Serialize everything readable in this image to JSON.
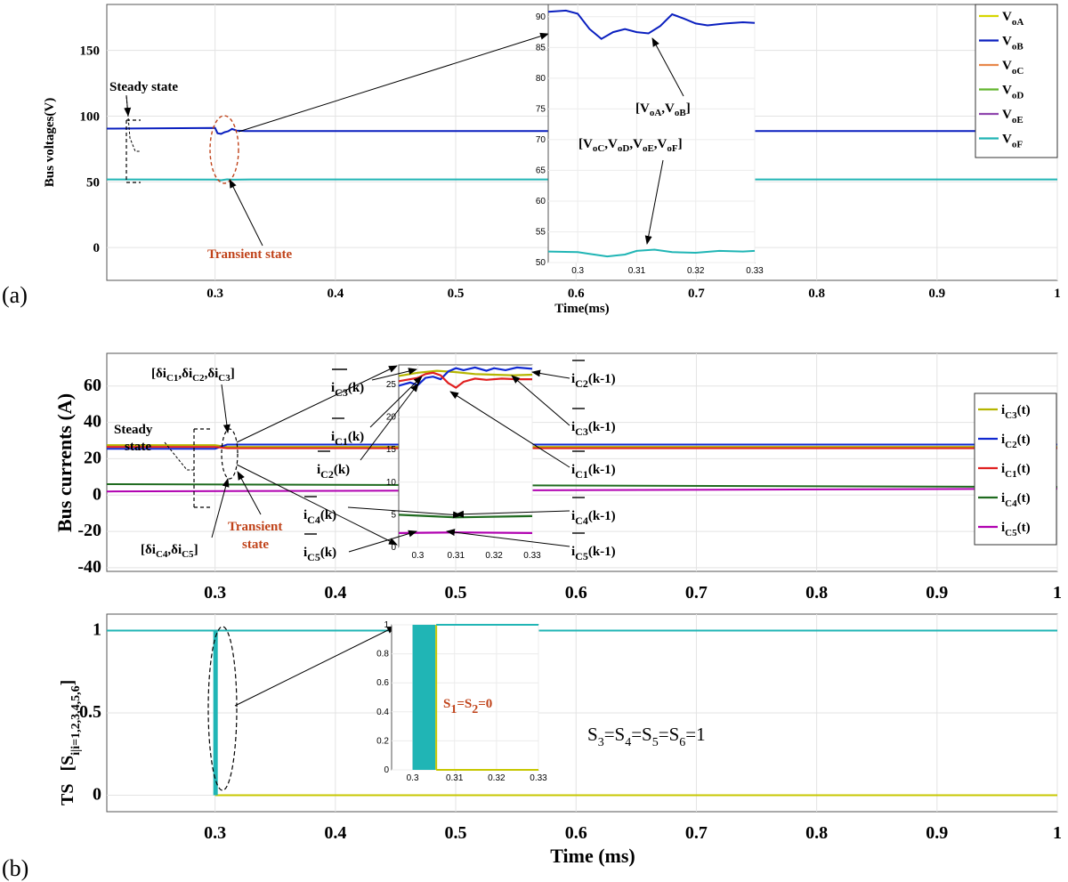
{
  "panel_labels": {
    "a": "(a)",
    "b": "(b)"
  },
  "colors": {
    "voA": "#d6d600",
    "voB": "#0a1fbf",
    "voC": "#e8874a",
    "voD": "#62b52c",
    "voE": "#8e44ad",
    "voF": "#20b5b5",
    "ic3": "#b5b500",
    "ic2": "#1028d0",
    "ic1": "#e02020",
    "ic4": "#1f6b1f",
    "ic5": "#b000b0",
    "red_text": "#c0431a",
    "ts_on": "#20b5b5",
    "ts_off": "#c7c700"
  },
  "chart_data": [
    {
      "type": "line",
      "title": "",
      "xlabel": "Time(ms)",
      "ylabel": "Bus voltages(V)",
      "xlim": [
        0.21,
        1.0
      ],
      "ylim": [
        -25,
        185
      ],
      "xticks": [
        "0.3",
        "0.4",
        "0.5",
        "0.6",
        "0.7",
        "0.8",
        "0.9",
        "1"
      ],
      "yticks": [
        "0",
        "50",
        "100",
        "150"
      ],
      "legend": [
        "V_oA",
        "V_oB",
        "V_oC",
        "V_oD",
        "V_oE",
        "V_oF"
      ],
      "legend_items": [
        {
          "main": "V",
          "sub": "oA"
        },
        {
          "main": "V",
          "sub": "oB"
        },
        {
          "main": "V",
          "sub": "oC"
        },
        {
          "main": "V",
          "sub": "oD"
        },
        {
          "main": "V",
          "sub": "oE"
        },
        {
          "main": "V",
          "sub": "oF"
        }
      ],
      "series": [
        {
          "name": "V_oA, V_oB",
          "x": [
            0.21,
            0.3,
            0.302,
            0.305,
            0.308,
            0.311,
            0.314,
            0.318,
            0.325,
            1.0
          ],
          "y": [
            90.5,
            91,
            87,
            86.5,
            87.8,
            88.5,
            90.2,
            89,
            88.7,
            88.6
          ]
        },
        {
          "name": "V_oC..V_oF",
          "x": [
            0.21,
            0.3,
            0.305,
            0.31,
            0.315,
            0.33,
            1.0
          ],
          "y": [
            51.8,
            51.7,
            51.2,
            51.9,
            51.6,
            51.8,
            51.8
          ]
        }
      ],
      "inset": {
        "xlim": [
          0.295,
          0.33
        ],
        "ylim": [
          50,
          92
        ],
        "xticks": [
          "0.3",
          "0.31",
          "0.32",
          "0.33"
        ],
        "yticks": [
          "50",
          "55",
          "60",
          "65",
          "70",
          "75",
          "80",
          "85",
          "90"
        ],
        "series": [
          {
            "name": "V_oA,V_oB",
            "x": [
              0.295,
              0.298,
              0.3,
              0.302,
              0.304,
              0.306,
              0.308,
              0.31,
              0.312,
              0.314,
              0.316,
              0.318,
              0.32,
              0.322,
              0.325,
              0.328,
              0.33
            ],
            "y": [
              90.8,
              91,
              90.5,
              88,
              86.4,
              87.5,
              88,
              87.5,
              87.3,
              88.5,
              90.4,
              89.7,
              88.9,
              88.6,
              88.9,
              89.1,
              89
            ]
          },
          {
            "name": "V_oC..V_oF",
            "x": [
              0.295,
              0.3,
              0.302,
              0.305,
              0.308,
              0.31,
              0.313,
              0.316,
              0.32,
              0.324,
              0.328,
              0.33
            ],
            "y": [
              51.8,
              51.7,
              51.4,
              51,
              51.3,
              51.9,
              52.1,
              51.7,
              51.6,
              51.9,
              51.8,
              51.9
            ]
          }
        ]
      },
      "annotations": {
        "steady": "Steady state",
        "transient": "Transient state",
        "grp_ab": {
          "open": "[",
          "v1": "V",
          "s1": "oA",
          "sep": ",",
          "v2": "V",
          "s2": "oB",
          "close": "]"
        },
        "grp_cf": {
          "open": "[",
          "v1": "V",
          "s1": "oC",
          "sep1": ",",
          "v2": "V",
          "s2": "oD",
          "sep2": ",",
          "v3": "V",
          "s3": "oE",
          "sep3": ",",
          "v4": "V",
          "s4": "oF",
          "close": "]"
        }
      }
    },
    {
      "type": "line",
      "title": "",
      "xlabel": "",
      "ylabel": "Bus currents (A)",
      "xlim": [
        0.21,
        1.0
      ],
      "ylim": [
        -42,
        78
      ],
      "xticks": [
        "0.3",
        "0.4",
        "0.5",
        "0.6",
        "0.7",
        "0.8",
        "0.9",
        "1"
      ],
      "yticks": [
        "-40",
        "-20",
        "0",
        "20",
        "40",
        "60"
      ],
      "legend": [
        "i_C3(t)",
        "i_C2(t)",
        "i_C1(t)",
        "i_C4(t)",
        "i_C5(t)"
      ],
      "legend_items": [
        {
          "main": "i",
          "sub": "C3",
          "tail": "(t)"
        },
        {
          "main": "i",
          "sub": "C2",
          "tail": "(t)"
        },
        {
          "main": "i",
          "sub": "C1",
          "tail": "(t)"
        },
        {
          "main": "i",
          "sub": "C4",
          "tail": "(t)"
        },
        {
          "main": "i",
          "sub": "C5",
          "tail": "(t)"
        }
      ],
      "series": [
        {
          "name": "i_C3",
          "x": [
            0.21,
            0.3,
            0.31,
            1.0
          ],
          "y": [
            27.5,
            27.5,
            26.5,
            26.5
          ]
        },
        {
          "name": "i_C2",
          "x": [
            0.21,
            0.3,
            0.31,
            1.0
          ],
          "y": [
            25.5,
            25.5,
            27.8,
            27.8
          ]
        },
        {
          "name": "i_C1",
          "x": [
            0.21,
            0.3,
            0.31,
            1.0
          ],
          "y": [
            26.5,
            26.5,
            25.8,
            25.8
          ]
        },
        {
          "name": "i_C4",
          "x": [
            0.21,
            1.0
          ],
          "y": [
            6,
            4.5
          ]
        },
        {
          "name": "i_C5",
          "x": [
            0.21,
            1.0
          ],
          "y": [
            2,
            3.5
          ]
        }
      ],
      "inset": {
        "xlim": [
          0.295,
          0.33
        ],
        "ylim": [
          0,
          28
        ],
        "xticks": [
          "0.3",
          "0.31",
          "0.32",
          "0.33"
        ],
        "yticks": [
          "0",
          "5",
          "10",
          "15",
          "20",
          "25"
        ],
        "series": [
          {
            "name": "i_C3",
            "x": [
              0.295,
              0.3,
              0.305,
              0.31,
              0.315,
              0.32,
              0.325,
              0.33
            ],
            "y": [
              26.3,
              26.8,
              27.1,
              26.9,
              26.6,
              26.5,
              26.4,
              26.5
            ]
          },
          {
            "name": "i_C2",
            "x": [
              0.295,
              0.298,
              0.3,
              0.302,
              0.304,
              0.306,
              0.308,
              0.31,
              0.312,
              0.315,
              0.318,
              0.32,
              0.323,
              0.326,
              0.33
            ],
            "y": [
              24.8,
              25.3,
              24.9,
              26,
              26.2,
              25.8,
              27,
              27.5,
              27.2,
              27.6,
              27.1,
              27.5,
              27.2,
              27.6,
              27.4
            ]
          },
          {
            "name": "i_C1",
            "x": [
              0.295,
              0.298,
              0.3,
              0.302,
              0.304,
              0.306,
              0.308,
              0.31,
              0.312,
              0.315,
              0.318,
              0.322,
              0.326,
              0.33
            ],
            "y": [
              25.5,
              25.8,
              26,
              26.6,
              26.8,
              26.4,
              25.2,
              24.5,
              25.4,
              25.9,
              25.7,
              25.9,
              25.8,
              25.8
            ]
          },
          {
            "name": "i_C4",
            "x": [
              0.295,
              0.31,
              0.33
            ],
            "y": [
              5,
              4.6,
              4.8
            ]
          },
          {
            "name": "i_C5",
            "x": [
              0.295,
              0.31,
              0.33
            ],
            "y": [
              2.2,
              2.3,
              2.2
            ]
          }
        ]
      },
      "annotations": {
        "steady_line1": "Steady",
        "steady_line2": "state",
        "transient_line1": "Transient",
        "transient_line2": "state",
        "grp_c123": {
          "open": "[",
          "d1": "δi",
          "s1": "C1",
          "sep1": ",",
          "d2": "δi",
          "s2": "C2",
          "sep2": ",",
          "d3": "δi",
          "s3": "C3",
          "close": "]"
        },
        "grp_c45": {
          "open": "[",
          "d1": "δi",
          "s1": "C4",
          "sep1": ",",
          "d2": "δi",
          "s2": "C5",
          "close": "]"
        },
        "labels": [
          {
            "main": "i",
            "sub": "C3",
            "tail": "(k)"
          },
          {
            "main": "i",
            "sub": "C1",
            "tail": "(k)"
          },
          {
            "main": "i",
            "sub": "C2",
            "tail": "(k)"
          },
          {
            "main": "i",
            "sub": "C4",
            "tail": "(k)"
          },
          {
            "main": "i",
            "sub": "C5",
            "tail": "(k)"
          },
          {
            "main": "i",
            "sub": "C2",
            "tail": "(k-1)"
          },
          {
            "main": "i",
            "sub": "C3",
            "tail": "(k-1)"
          },
          {
            "main": "i",
            "sub": "C1",
            "tail": "(k-1)"
          },
          {
            "main": "i",
            "sub": "C4",
            "tail": "(k-1)"
          },
          {
            "main": "i",
            "sub": "C5",
            "tail": "(k-1)"
          }
        ]
      }
    },
    {
      "type": "line",
      "title": "",
      "xlabel": "Time (ms)",
      "ylabel": "TS [S_i|i=1,2,3,4,5,6]",
      "ylabel_parts": {
        "pre": "TS",
        "bracket": "[S",
        "sub": "i|i=1,2,3,4,5,6",
        "close": "]"
      },
      "xlim": [
        0.21,
        1.0
      ],
      "ylim": [
        -0.1,
        1.1
      ],
      "xticks": [
        "0.3",
        "0.4",
        "0.5",
        "0.6",
        "0.7",
        "0.8",
        "0.9",
        "1"
      ],
      "yticks": [
        "0",
        "0.5",
        "1"
      ],
      "series": [
        {
          "name": "S3..S6",
          "x": [
            0.21,
            1.0
          ],
          "y": [
            1,
            1
          ]
        },
        {
          "name": "S1,S2",
          "x": [
            0.21,
            0.3,
            0.3,
            0.305,
            0.305,
            1.0
          ],
          "y": [
            1,
            1,
            0,
            0,
            0,
            0
          ]
        }
      ],
      "inset": {
        "xlim": [
          0.295,
          0.33
        ],
        "ylim": [
          0,
          1
        ],
        "xticks": [
          "0.3",
          "0.31",
          "0.32",
          "0.33"
        ],
        "yticks": [
          "0",
          "0.2",
          "0.4",
          "0.6",
          "0.8",
          "1"
        ],
        "pulse": {
          "x_start": 0.3,
          "x_end": 0.305
        }
      },
      "annotations": {
        "s12": {
          "s": "S",
          "sub1": "1",
          "eq1": "=S",
          "sub2": "2",
          "tail": "=0"
        },
        "s3456": {
          "s": "S",
          "sub1": "3",
          "eq1": "=S",
          "sub2": "4",
          "eq2": "=S",
          "sub3": "5",
          "eq3": "=S",
          "sub4": "6",
          "tail": "=1"
        }
      }
    }
  ]
}
